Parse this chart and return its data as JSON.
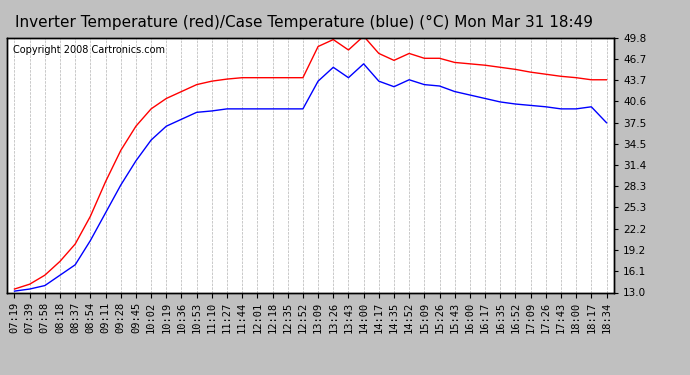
{
  "title": "Inverter Temperature (red)/Case Temperature (blue) (°C) Mon Mar 31 18:49",
  "copyright": "Copyright 2008 Cartronics.com",
  "background_color": "#c0c0c0",
  "plot_bg_color": "#ffffff",
  "grid_color": "#a0a0a0",
  "y_ticks": [
    13.0,
    16.1,
    19.2,
    22.2,
    25.3,
    28.3,
    31.4,
    34.5,
    37.5,
    40.6,
    43.7,
    46.7,
    49.8
  ],
  "ylim": [
    13.0,
    49.8
  ],
  "x_labels": [
    "07:19",
    "07:39",
    "07:58",
    "08:18",
    "08:37",
    "08:54",
    "09:11",
    "09:28",
    "09:45",
    "10:02",
    "10:19",
    "10:36",
    "10:53",
    "11:10",
    "11:27",
    "11:44",
    "12:01",
    "12:18",
    "12:35",
    "12:52",
    "13:09",
    "13:26",
    "13:43",
    "14:00",
    "14:17",
    "14:35",
    "14:52",
    "15:09",
    "15:26",
    "15:43",
    "16:00",
    "16:17",
    "16:35",
    "16:52",
    "17:09",
    "17:26",
    "17:43",
    "18:00",
    "18:17",
    "18:34"
  ],
  "red_data": [
    13.5,
    14.2,
    15.5,
    17.5,
    20.0,
    24.0,
    29.0,
    33.5,
    37.0,
    39.5,
    41.0,
    42.0,
    43.0,
    43.5,
    43.8,
    44.0,
    44.0,
    44.0,
    44.0,
    44.0,
    48.5,
    49.5,
    48.0,
    50.0,
    47.5,
    46.5,
    47.5,
    46.8,
    46.8,
    46.2,
    46.0,
    45.8,
    45.5,
    45.2,
    44.8,
    44.5,
    44.2,
    44.0,
    43.7,
    43.7
  ],
  "blue_data": [
    13.2,
    13.5,
    14.0,
    15.5,
    17.0,
    20.5,
    24.5,
    28.5,
    32.0,
    35.0,
    37.0,
    38.0,
    39.0,
    39.2,
    39.5,
    39.5,
    39.5,
    39.5,
    39.5,
    39.5,
    43.5,
    45.5,
    44.0,
    46.0,
    43.5,
    42.7,
    43.7,
    43.0,
    42.8,
    42.0,
    41.5,
    41.0,
    40.5,
    40.2,
    40.0,
    39.8,
    39.5,
    39.5,
    39.8,
    37.5
  ],
  "red_color": "#ff0000",
  "blue_color": "#0000ff",
  "title_fontsize": 11,
  "tick_fontsize": 7.5,
  "copyright_fontsize": 7
}
